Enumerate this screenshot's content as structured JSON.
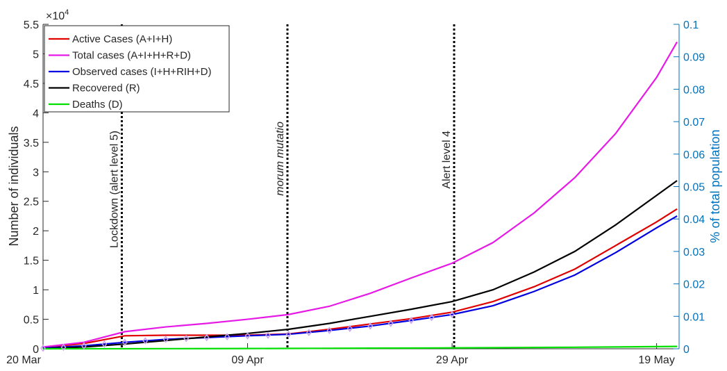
{
  "chart_data": {
    "type": "line",
    "y_label": "Number of individuals",
    "y2_label": "% of total population",
    "y_multiplier_base": "×10",
    "y_multiplier_exponent": "4",
    "xlim": [
      0,
      62.2
    ],
    "xticks": [
      {
        "value": 0,
        "label": "20 Mar"
      },
      {
        "value": 20,
        "label": "09 Apr"
      },
      {
        "value": 40,
        "label": "29 Apr"
      },
      {
        "value": 60,
        "label": "19 May"
      }
    ],
    "ylim": [
      0,
      55000
    ],
    "yticks": [
      {
        "value": 0,
        "label": "0"
      },
      {
        "value": 5000,
        "label": "0.5"
      },
      {
        "value": 10000,
        "label": "1"
      },
      {
        "value": 15000,
        "label": "1.5"
      },
      {
        "value": 20000,
        "label": "2"
      },
      {
        "value": 25000,
        "label": "2.5"
      },
      {
        "value": 30000,
        "label": "3"
      },
      {
        "value": 35000,
        "label": "3.5"
      },
      {
        "value": 40000,
        "label": "4"
      },
      {
        "value": 45000,
        "label": "4.5"
      },
      {
        "value": 50000,
        "label": "5"
      },
      {
        "value": 55000,
        "label": "5.5"
      }
    ],
    "y2lim": [
      0,
      0.1
    ],
    "y2ticks": [
      0,
      0.01,
      0.02,
      0.03,
      0.04,
      0.05,
      0.06,
      0.07,
      0.08,
      0.09,
      0.1
    ],
    "y2_color": "#0072bd",
    "legend": "upper left",
    "x": [
      0,
      4,
      8,
      12,
      16,
      20,
      24,
      28,
      32,
      36,
      40,
      44,
      48,
      52,
      56,
      60,
      62
    ],
    "series": [
      {
        "name": "Active Cases (A+I+H)",
        "color": "#e00000",
        "values": [
          200,
          900,
          2200,
          2300,
          2300,
          2300,
          2500,
          3300,
          4200,
          5100,
          6200,
          8000,
          10500,
          13500,
          17500,
          21500,
          23700
        ]
      },
      {
        "name": "Total cases (A+I+H+R+D)",
        "color": "#e619e6",
        "values": [
          300,
          1100,
          2900,
          3700,
          4300,
          5000,
          5800,
          7200,
          9400,
          12000,
          14500,
          18000,
          23000,
          29000,
          36500,
          46000,
          52000
        ]
      },
      {
        "name": "Observed cases (I+H+RIH+D)",
        "color": "#0000e0",
        "values": [
          100,
          500,
          1100,
          1600,
          1900,
          2200,
          2450,
          3100,
          3850,
          4800,
          5800,
          7300,
          9700,
          12500,
          16300,
          20500,
          22500
        ]
      },
      {
        "name": "Recovered (R)",
        "color": "#000000",
        "values": [
          0,
          300,
          800,
          1400,
          2000,
          2600,
          3300,
          4300,
          5500,
          6700,
          8000,
          10000,
          13000,
          16500,
          21000,
          26000,
          28500
        ]
      },
      {
        "name": "Deaths (D)",
        "color": "#00e000",
        "values": [
          0,
          5,
          10,
          20,
          30,
          40,
          60,
          80,
          100,
          120,
          150,
          180,
          220,
          260,
          310,
          370,
          400
        ]
      }
    ],
    "observed_points": {
      "color": "#c8a0f0",
      "x": [
        0,
        2,
        4,
        6,
        8,
        10,
        12,
        14,
        16,
        18,
        20,
        22,
        24,
        26,
        28,
        30,
        32,
        34,
        36,
        38,
        40
      ],
      "values": [
        100,
        250,
        500,
        800,
        1100,
        1350,
        1600,
        1750,
        1900,
        2050,
        2200,
        2300,
        2450,
        2750,
        3100,
        3450,
        3850,
        4300,
        4800,
        5300,
        5800
      ]
    },
    "annotations": [
      {
        "x": 7.7,
        "text": "Lockdown (alert level 5)",
        "italic": false
      },
      {
        "x": 23.9,
        "text": "morum mutatio",
        "italic": true
      },
      {
        "x": 40.2,
        "text": "Alert level 4",
        "italic": false
      }
    ]
  }
}
